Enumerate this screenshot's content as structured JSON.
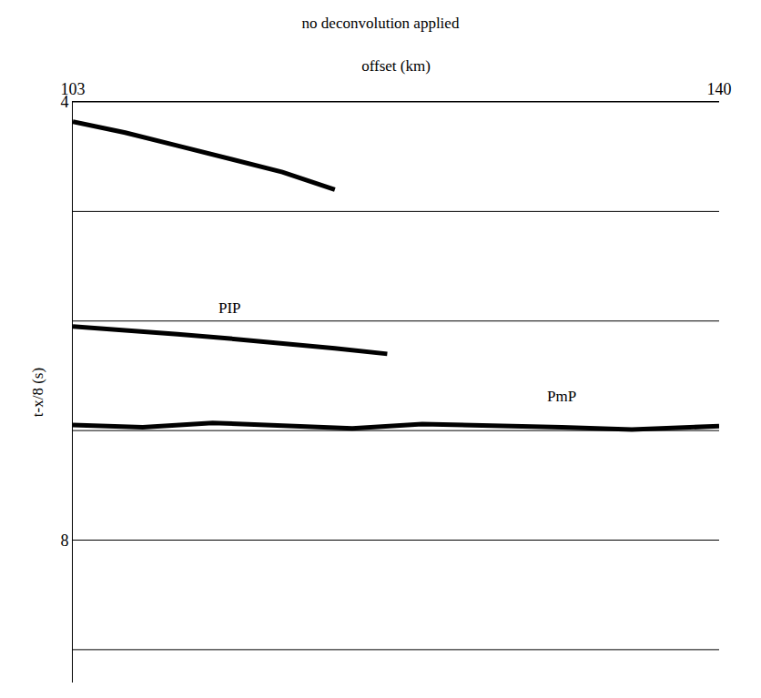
{
  "chart_data": {
    "type": "line",
    "title": "no deconvolution applied",
    "x_label": "offset (km)",
    "y_label": "t-x/8 (s)",
    "xlim": [
      103,
      140
    ],
    "xticks": [
      103,
      140
    ],
    "ylim": [
      9.3,
      4
    ],
    "yticks": [
      4,
      8
    ],
    "grid_lines": [
      4,
      5,
      6,
      7,
      8,
      9
    ],
    "grid": true,
    "color": "#000000",
    "series": [
      {
        "x": [
          103,
          106,
          109,
          112,
          115,
          118
        ],
        "values": [
          4.18,
          4.28,
          4.4,
          4.52,
          4.64,
          4.8
        ],
        "line_style": "solid"
      },
      {
        "name": "PIP",
        "x": [
          103,
          106,
          109,
          112,
          115,
          118,
          121
        ],
        "values": [
          6.05,
          6.08,
          6.12,
          6.16,
          6.2,
          6.25,
          6.3
        ],
        "line_style": "solid"
      },
      {
        "name": "PmP",
        "x": [
          103,
          107,
          111,
          115,
          119,
          123,
          127,
          131,
          135,
          140
        ],
        "values": [
          6.95,
          6.97,
          6.93,
          6.96,
          6.98,
          6.94,
          6.95,
          6.97,
          6.99,
          6.96
        ],
        "line_style": "solid"
      }
    ]
  }
}
